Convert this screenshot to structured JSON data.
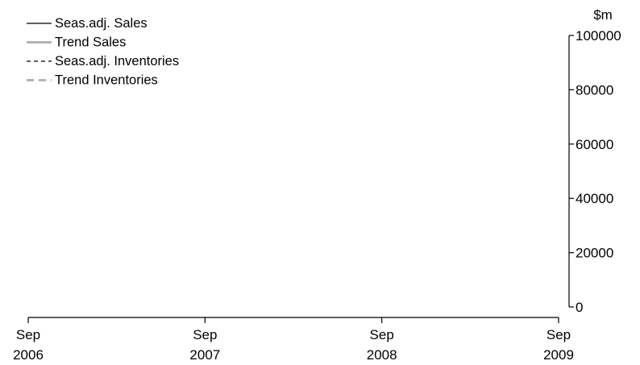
{
  "chart_data": {
    "type": "line",
    "x_ticks": [
      {
        "month": "Sep",
        "year": "2006"
      },
      {
        "month": "Sep",
        "year": "2007"
      },
      {
        "month": "Sep",
        "year": "2008"
      },
      {
        "month": "Sep",
        "year": "2009"
      }
    ],
    "xlim": [
      "2006-09",
      "2009-09"
    ],
    "y_unit": "$m",
    "ylim": [
      0,
      100000
    ],
    "y_ticks": [
      "0",
      "20000",
      "40000",
      "60000",
      "80000",
      "100000"
    ],
    "y_axis_side": "right",
    "grid": false,
    "legend_position": "top-left",
    "series": [
      {
        "name": "Seas.adj. Sales",
        "style": "solid",
        "color": "#000000",
        "values": []
      },
      {
        "name": "Trend Sales",
        "style": "solid",
        "color": "#b3b3b3",
        "values": []
      },
      {
        "name": "Seas.adj. Inventories",
        "style": "dashed",
        "color": "#000000",
        "values": []
      },
      {
        "name": "Trend Inventories",
        "style": "dashed",
        "color": "#b3b3b3",
        "values": []
      }
    ]
  }
}
